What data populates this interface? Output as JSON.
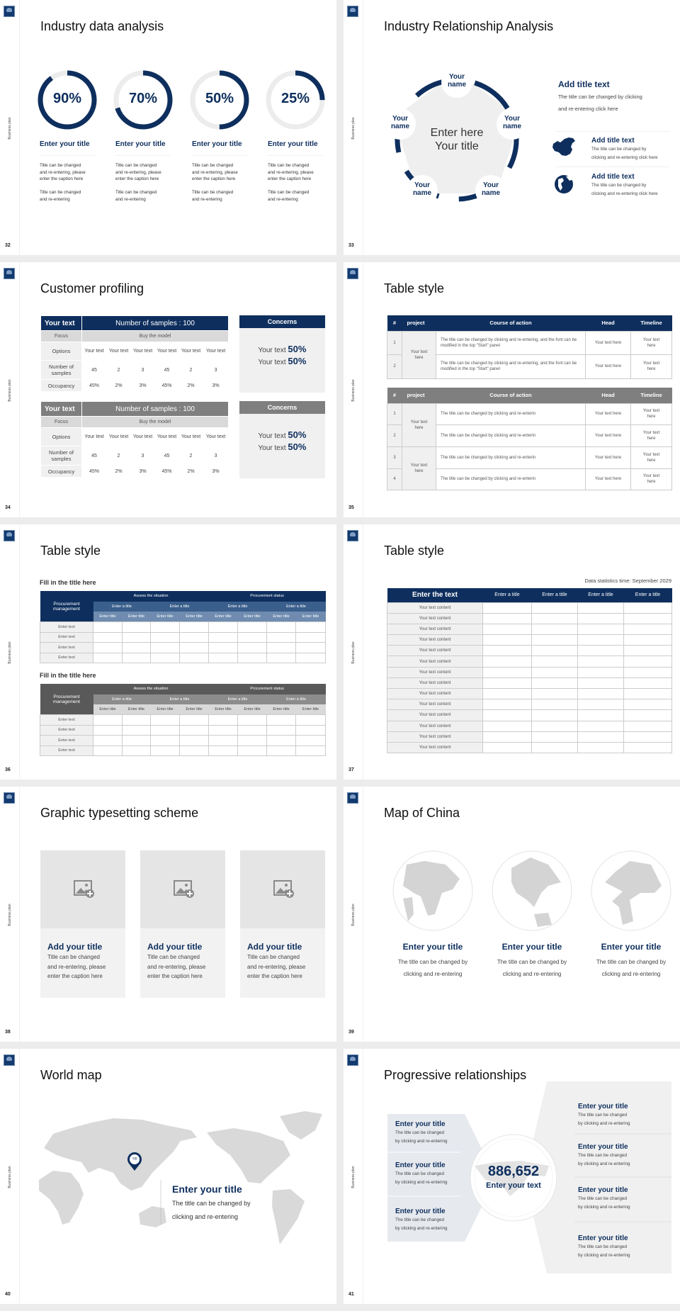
{
  "deck": {
    "side_label": "Business plan",
    "accent": "#0e2f5e",
    "gray_accent": "#7f7f7f"
  },
  "s32": {
    "page": "32",
    "title": "Industry data analysis",
    "items": [
      {
        "value": "90%",
        "pct": 90,
        "title": "Enter your title",
        "cap1": [
          "Title can be changed",
          "and re-entering, please",
          "enter the caption here"
        ],
        "cap2": [
          "Title can be changed",
          "and re-entering"
        ]
      },
      {
        "value": "70%",
        "pct": 70,
        "title": "Enter your title",
        "cap1": [
          "Title can be changed",
          "and re-entering, please",
          "enter the caption here"
        ],
        "cap2": [
          "Title can be changed",
          "and re-entering"
        ]
      },
      {
        "value": "50%",
        "pct": 50,
        "title": "Enter your title",
        "cap1": [
          "Title can be changed",
          "and re-entering, please",
          "enter the caption here"
        ],
        "cap2": [
          "Title can be changed",
          "and re-entering"
        ]
      },
      {
        "value": "25%",
        "pct": 25,
        "title": "Enter your title",
        "cap1": [
          "Title can be changed",
          "and re-entering, please",
          "enter the caption here"
        ],
        "cap2": [
          "Title can be changed",
          "and re-entering"
        ]
      }
    ]
  },
  "s33": {
    "page": "33",
    "title": "Industry Relationship Analysis",
    "center": [
      "Enter here",
      "Your title"
    ],
    "nodes": [
      [
        "Your",
        "name"
      ],
      [
        "Your",
        "name"
      ],
      [
        "Your",
        "name"
      ],
      [
        "Your",
        "name"
      ],
      [
        "Your",
        "name"
      ]
    ],
    "main": {
      "title": "Add title text",
      "lines": [
        "The title can be changed by clicking",
        "and re-entering click here"
      ]
    },
    "sub": [
      {
        "icon": "china-map-icon",
        "title": "Add title text",
        "lines": [
          "The title can be changed by",
          "clicking and re-entering click here"
        ]
      },
      {
        "icon": "globe-icon",
        "title": "Add title text",
        "lines": [
          "The title can be changed by",
          "clicking and re-entering click here"
        ]
      }
    ]
  },
  "s34": {
    "page": "34",
    "title": "Customer profiling",
    "tables": [
      {
        "color": "#0e2f5e",
        "header_left": "Your text",
        "header_right": "Number of samples : 100",
        "focus_label": "Focus",
        "focus_value": "Buy the model",
        "rows": [
          {
            "label": "Options",
            "cells": [
              "Your text",
              "Your text",
              "Your text",
              "Your text",
              "Your text",
              "Your text"
            ]
          },
          {
            "label": "Number of samples",
            "cells": [
              "45",
              "2",
              "3",
              "45",
              "2",
              "3"
            ]
          },
          {
            "label": "Occupancy",
            "cells": [
              "45%",
              "2%",
              "3%",
              "45%",
              "2%",
              "3%"
            ]
          }
        ],
        "concerns": {
          "title": "Concerns",
          "lines": [
            {
              "text": "Your text",
              "value": "50%"
            },
            {
              "text": "Your text",
              "value": "50%"
            }
          ]
        }
      },
      {
        "color": "#7f7f7f",
        "header_left": "Your text",
        "header_right": "Number of samples : 100",
        "focus_label": "Focus",
        "focus_value": "Buy the model",
        "rows": [
          {
            "label": "Options",
            "cells": [
              "Your text",
              "Your text",
              "Your text",
              "Your text",
              "Your text",
              "Your text"
            ]
          },
          {
            "label": "Number of samples",
            "cells": [
              "45",
              "2",
              "3",
              "45",
              "2",
              "3"
            ]
          },
          {
            "label": "Occupancy",
            "cells": [
              "45%",
              "2%",
              "3%",
              "45%",
              "2%",
              "3%"
            ]
          }
        ],
        "concerns": {
          "title": "Concerns",
          "lines": [
            {
              "text": "Your text",
              "value": "50%"
            },
            {
              "text": "Your text",
              "value": "50%"
            }
          ]
        }
      }
    ]
  },
  "s35": {
    "page": "35",
    "title": "Table style",
    "tables": [
      {
        "color": "#0e2f5e",
        "headers": [
          "#",
          "project",
          "Course of action",
          "Head",
          "Timeline"
        ],
        "groups": [
          {
            "project": "Your text here",
            "rows": [
              {
                "num": "1",
                "action": "The title can be changed by clicking and re-entering, and the font can be modified in the top \"Start\" panel",
                "head": "Your text here",
                "timeline": "Your text here"
              },
              {
                "num": "2",
                "action": "The title can be changed by clicking and re-entering, and the font can be modified in the top \"Start\" panel",
                "head": "Your text here",
                "timeline": "Your text here"
              }
            ]
          }
        ]
      },
      {
        "color": "#7f7f7f",
        "headers": [
          "#",
          "project",
          "Course of action",
          "Head",
          "Timeline"
        ],
        "groups": [
          {
            "project": "Your text here",
            "rows": [
              {
                "num": "1",
                "action": "The title can be changed by clicking and re-enterin",
                "head": "Your text here",
                "timeline": "Your text here"
              },
              {
                "num": "2",
                "action": "The title can be changed by clicking and re-enterin",
                "head": "Your text here",
                "timeline": "Your text here"
              }
            ]
          },
          {
            "project": "Your text here",
            "rows": [
              {
                "num": "3",
                "action": "The title can be changed by clicking and re-enterin",
                "head": "Your text here",
                "timeline": "Your text here"
              },
              {
                "num": "4",
                "action": "The title can be changed by clicking and re-enterin",
                "head": "Your text here",
                "timeline": "Your text here"
              }
            ]
          }
        ]
      }
    ]
  },
  "s36": {
    "page": "36",
    "title": "Table style",
    "tables": [
      {
        "subtitle": "Fill in the title here",
        "color": "#0e2f5e",
        "color2": "#3a5f8c",
        "color3": "#6f8cb0",
        "corner": "Procurement management",
        "groups": [
          "Assess the situation",
          "Procurement status"
        ],
        "subs": [
          "Enter a title",
          "Enter a title",
          "Enter a title",
          "Enter a title"
        ],
        "cols": [
          "Enter title",
          "Enter title",
          "Enter title",
          "Enter title",
          "Enter title",
          "Enter title",
          "Enter title",
          "Enter title"
        ],
        "rows": [
          "Enter text",
          "Enter text",
          "Enter text",
          "Enter text"
        ]
      },
      {
        "subtitle": "Fill in the title here",
        "color": "#595959",
        "color2": "#8c8c8c",
        "color3": "#d9d9d9",
        "corner": "Procurement management",
        "groups": [
          "Assess the situation",
          "Procurement status"
        ],
        "subs": [
          "Enter a title",
          "Enter a title",
          "Enter a title",
          "Enter a title"
        ],
        "cols": [
          "Enter title",
          "Enter title",
          "Enter title",
          "Enter title",
          "Enter title",
          "Enter title",
          "Enter title",
          "Enter title"
        ],
        "rows": [
          "Enter text",
          "Enter text",
          "Enter text",
          "Enter text"
        ]
      }
    ]
  },
  "s37": {
    "page": "37",
    "title": "Table style",
    "note": "Data statistics time: September 2029",
    "headers": [
      "Enter the text",
      "Enter a title",
      "Enter a title",
      "Enter a title",
      "Enter a title"
    ],
    "rows": [
      "Your text content",
      "Your text content",
      "Your text content",
      "Your text content",
      "Your text content",
      "Your text content",
      "Your text content",
      "Your text content",
      "Your text content",
      "Your text content",
      "Your text content",
      "Your text content",
      "Your text content",
      "Your text content"
    ]
  },
  "s38": {
    "page": "38",
    "title": "Graphic typesetting scheme",
    "cards": [
      {
        "title": "Add your title",
        "lines": [
          "Title can be changed",
          "and re-entering, please",
          "enter the caption here"
        ]
      },
      {
        "title": "Add your title",
        "lines": [
          "Title can be changed",
          "and re-entering, please",
          "enter the caption here"
        ]
      },
      {
        "title": "Add your title",
        "lines": [
          "Title can be changed",
          "and re-entering, please",
          "enter the caption here"
        ]
      }
    ]
  },
  "s39": {
    "page": "39",
    "title": "Map of China",
    "items": [
      {
        "title": "Enter your title",
        "lines": [
          "The title can be changed by",
          "clicking and re-entering"
        ]
      },
      {
        "title": "Enter your title",
        "lines": [
          "The title can be changed by",
          "clicking and re-entering"
        ]
      },
      {
        "title": "Enter your title",
        "lines": [
          "The title can be changed by",
          "clicking and re-entering"
        ]
      }
    ]
  },
  "s40": {
    "page": "40",
    "title": "World map",
    "pin_label": "中国",
    "callout": {
      "title": "Enter your title",
      "lines": [
        "The title can be changed by",
        "clicking and re-entering"
      ]
    }
  },
  "s41": {
    "page": "41",
    "title": "Progressive relationships",
    "center": {
      "value": "886,652",
      "text": "Enter your text"
    },
    "left": [
      {
        "title": "Enter your title",
        "lines": [
          "The title can be changed",
          "by clicking and re-entering"
        ]
      },
      {
        "title": "Enter your title",
        "lines": [
          "The title can be changed",
          "by clicking and re-entering"
        ]
      },
      {
        "title": "Enter your title",
        "lines": [
          "The title can be changed",
          "by clicking and re-entering"
        ]
      }
    ],
    "right": [
      {
        "title": "Enter your title",
        "lines": [
          "The title can be changed",
          "by clicking and re-entering"
        ]
      },
      {
        "title": "Enter your title",
        "lines": [
          "The title can be changed",
          "by clicking and re-entering"
        ]
      },
      {
        "title": "Enter your title",
        "lines": [
          "The title can be changed",
          "by clicking and re-entering"
        ]
      },
      {
        "title": "Enter your title",
        "lines": [
          "The title can be changed",
          "by clicking and re-entering"
        ]
      }
    ]
  }
}
